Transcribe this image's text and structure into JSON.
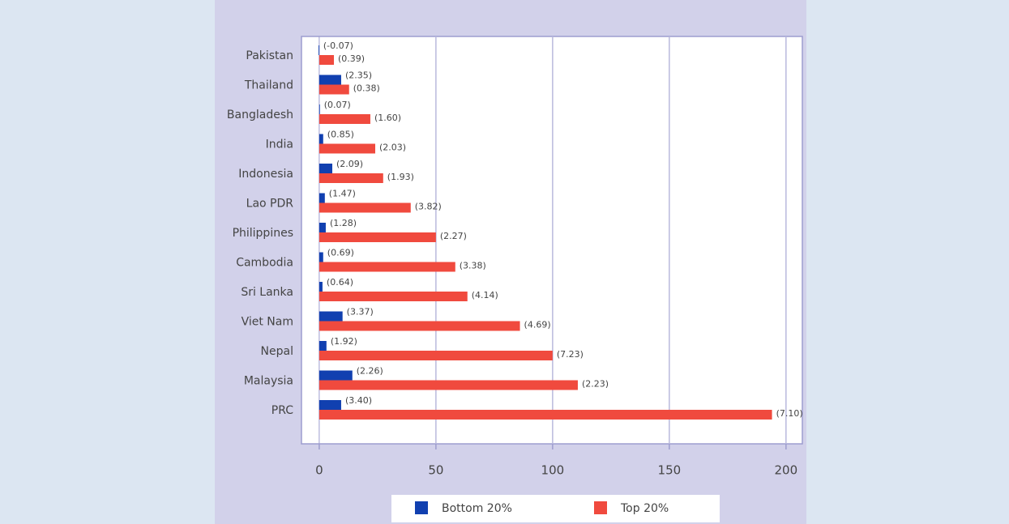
{
  "chart_data": {
    "type": "hbar",
    "categories": [
      "Pakistan",
      "Thailand",
      "Bangladesh",
      "India",
      "Indonesia",
      "Lao PDR",
      "Philippines",
      "Cambodia",
      "Sri Lanka",
      "Viet Nam",
      "Nepal",
      "Malaysia",
      "PRC"
    ],
    "series": [
      {
        "name": "Bottom 20%",
        "color": "#1140b0",
        "values": [
          -0.3,
          9.4,
          0.3,
          1.7,
          5.6,
          2.4,
          2.8,
          1.7,
          1.4,
          10,
          3.1,
          14.2,
          9.4
        ],
        "labels": [
          "(-0.07)",
          "(2.35)",
          "(0.07)",
          "(0.85)",
          "(2.09)",
          "(1.47)",
          "(1.28)",
          "(0.69)",
          "(0.64)",
          "(3.37)",
          "(1.92)",
          "(2.26)",
          "(3.40)"
        ]
      },
      {
        "name": "Top 20%",
        "color": "#f04a3e",
        "values": [
          6.3,
          12.8,
          21.9,
          24,
          27.4,
          39.2,
          50,
          58.3,
          63.5,
          86,
          100,
          110.8,
          194
        ],
        "labels": [
          "(0.39)",
          "(0.38)",
          "(1.60)",
          "(2.03)",
          "(1.93)",
          "(3.82)",
          "(2.27)",
          "(3.38)",
          "(4.14)",
          "(4.69)",
          "(7.23)",
          "(2.23)",
          "(7.10)"
        ]
      }
    ],
    "xlim": [
      -7.6,
      207
    ],
    "xticks": [
      0,
      50,
      100,
      150,
      200
    ],
    "grid": true
  }
}
